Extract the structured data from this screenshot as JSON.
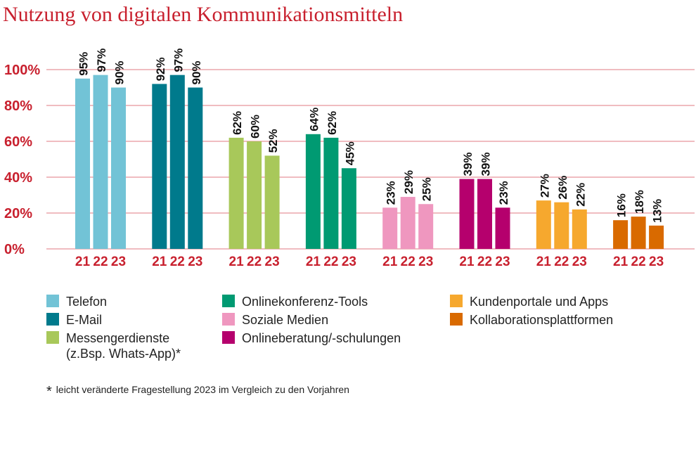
{
  "title": "Nutzung von digitalen Kommunikationsmitteln",
  "colors": {
    "accent": "#c8202e",
    "grid": "#e07a80",
    "groups": [
      "#72c3d6",
      "#007a8c",
      "#a8c85a",
      "#009a72",
      "#ef97bf",
      "#b5006d",
      "#f6a82e",
      "#d96a00"
    ]
  },
  "chart_data": {
    "type": "bar",
    "ylim": [
      0,
      100
    ],
    "yticks": [
      "0%",
      "20%",
      "40%",
      "60%",
      "80%",
      "100%"
    ],
    "grid": true,
    "year_labels": [
      "21",
      "22",
      "23"
    ],
    "groups": [
      {
        "name": "Telefon",
        "values": [
          95,
          97,
          90
        ],
        "labels": [
          "95%",
          "97%",
          "90%"
        ]
      },
      {
        "name": "E-Mail",
        "values": [
          92,
          97,
          90
        ],
        "labels": [
          "92%",
          "97%",
          "90%"
        ]
      },
      {
        "name": "Messengerdienste (z.Bsp. Whats-App)*",
        "values": [
          62,
          60,
          52
        ],
        "labels": [
          "62%",
          "60%",
          "52%"
        ]
      },
      {
        "name": "Onlinekonferenz-Tools",
        "values": [
          64,
          62,
          45
        ],
        "labels": [
          "64%",
          "62%",
          "45%"
        ]
      },
      {
        "name": "Soziale Medien",
        "values": [
          23,
          29,
          25
        ],
        "labels": [
          "23%",
          "29%",
          "25%"
        ]
      },
      {
        "name": "Onlineberatung/-schulungen",
        "values": [
          39,
          39,
          23
        ],
        "labels": [
          "39%",
          "39%",
          "23%"
        ]
      },
      {
        "name": "Kundenportale und Apps",
        "values": [
          27,
          26,
          22
        ],
        "labels": [
          "27%",
          "26%",
          "22%"
        ]
      },
      {
        "name": "Kollaborationsplattformen",
        "values": [
          16,
          18,
          13
        ],
        "labels": [
          "16%",
          "18%",
          "13%"
        ]
      }
    ]
  },
  "legend": [
    {
      "label": "Telefon",
      "sub": ""
    },
    {
      "label": "E-Mail",
      "sub": ""
    },
    {
      "label": "Messengerdienste",
      "sub": "(z.Bsp. Whats-App)*"
    },
    {
      "label": "Onlinekonferenz-Tools",
      "sub": ""
    },
    {
      "label": "Soziale Medien",
      "sub": ""
    },
    {
      "label": "Onlineberatung/-schulungen",
      "sub": ""
    },
    {
      "label": "Kundenportale und Apps",
      "sub": ""
    },
    {
      "label": "Kollaborationsplattformen",
      "sub": ""
    }
  ],
  "footnote": {
    "star": "*",
    "text": "leicht veränderte Fragestellung 2023 im Vergleich zu den Vorjahren"
  }
}
